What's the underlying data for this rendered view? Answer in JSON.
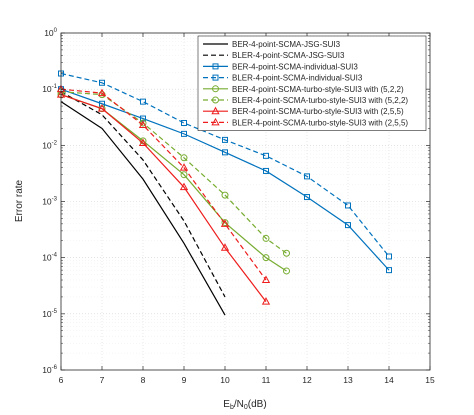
{
  "chart_data": {
    "type": "line",
    "title": "",
    "xlabel": {
      "base": "E",
      "sub1": "b",
      "mid": "/N",
      "sub2": "0",
      "tail": "(dB)"
    },
    "ylabel": "Error rate",
    "xlim": [
      6,
      15
    ],
    "ylim": [
      1e-06,
      1
    ],
    "yscale": "log",
    "grid": true,
    "legend_position": "top-right",
    "x_ticks": [
      6,
      7,
      8,
      9,
      10,
      11,
      12,
      13,
      14,
      15
    ],
    "y_ticks": [
      {
        "value": 1e-06,
        "exp": "-6"
      },
      {
        "value": 1e-05,
        "exp": "-5"
      },
      {
        "value": 0.0001,
        "exp": "-4"
      },
      {
        "value": 0.001,
        "exp": "-3"
      },
      {
        "value": 0.01,
        "exp": "-2"
      },
      {
        "value": 0.1,
        "exp": "-1"
      },
      {
        "value": 1,
        "exp": "0"
      }
    ],
    "series": [
      {
        "name": "BER-4-point-SCMA-JSG-SUI3",
        "color": "#000000",
        "dash": "solid",
        "marker": "none",
        "x": [
          6,
          7,
          8,
          9,
          10
        ],
        "y": [
          0.06,
          0.02,
          0.0025,
          0.00018,
          9.5e-06
        ]
      },
      {
        "name": "BLER-4-point-SCMA-JSG-SUI3",
        "color": "#000000",
        "dash": "dashed",
        "marker": "none",
        "x": [
          6,
          7,
          8,
          9,
          10
        ],
        "y": [
          0.09,
          0.035,
          0.0055,
          0.00045,
          2e-05
        ]
      },
      {
        "name": "BER-4-point-SCMA-individual-SUI3",
        "color": "#0072bd",
        "dash": "solid",
        "marker": "square",
        "x": [
          6,
          7,
          8,
          9,
          10,
          11,
          12,
          13,
          14
        ],
        "y": [
          0.1,
          0.055,
          0.03,
          0.016,
          0.0075,
          0.0035,
          0.0012,
          0.00038,
          6e-05
        ]
      },
      {
        "name": "BLER-4-point-SCMA-individual-SUI3",
        "color": "#0072bd",
        "dash": "dashed",
        "marker": "square",
        "x": [
          6,
          7,
          8,
          9,
          10,
          11,
          12,
          13,
          14
        ],
        "y": [
          0.19,
          0.13,
          0.06,
          0.025,
          0.0125,
          0.0065,
          0.0028,
          0.00085,
          0.000105
        ]
      },
      {
        "name": "BER-4-point-SCMA-turbo-style-SUI3 with (5,2,2)",
        "color": "#77ac30",
        "dash": "solid",
        "marker": "circle",
        "x": [
          6,
          7,
          8,
          9,
          10,
          11,
          11.5
        ],
        "y": [
          0.08,
          0.045,
          0.012,
          0.003,
          0.00042,
          0.0001,
          5.8e-05
        ]
      },
      {
        "name": "BLER-4-point-SCMA-turbo-style-SUI3 with (5,2,2)",
        "color": "#77ac30",
        "dash": "dashed",
        "marker": "circle",
        "x": [
          6,
          7,
          8,
          9,
          10,
          11,
          11.5
        ],
        "y": [
          0.09,
          0.08,
          0.025,
          0.006,
          0.0013,
          0.00022,
          0.00012
        ]
      },
      {
        "name": "BER-4-point-SCMA-turbo-style-SUI3 with (2,5,5)",
        "color": "#ee1c1c",
        "dash": "solid",
        "marker": "triangle",
        "x": [
          6,
          7,
          8,
          9,
          10,
          11
        ],
        "y": [
          0.08,
          0.045,
          0.011,
          0.0018,
          0.00015,
          1.65e-05
        ]
      },
      {
        "name": "BLER-4-point-SCMA-turbo-style-SUI3 with (2,5,5)",
        "color": "#ee1c1c",
        "dash": "dashed",
        "marker": "triangle",
        "x": [
          6,
          7,
          8,
          9,
          10,
          11
        ],
        "y": [
          0.1,
          0.085,
          0.023,
          0.004,
          0.0004,
          4e-05
        ]
      }
    ]
  }
}
